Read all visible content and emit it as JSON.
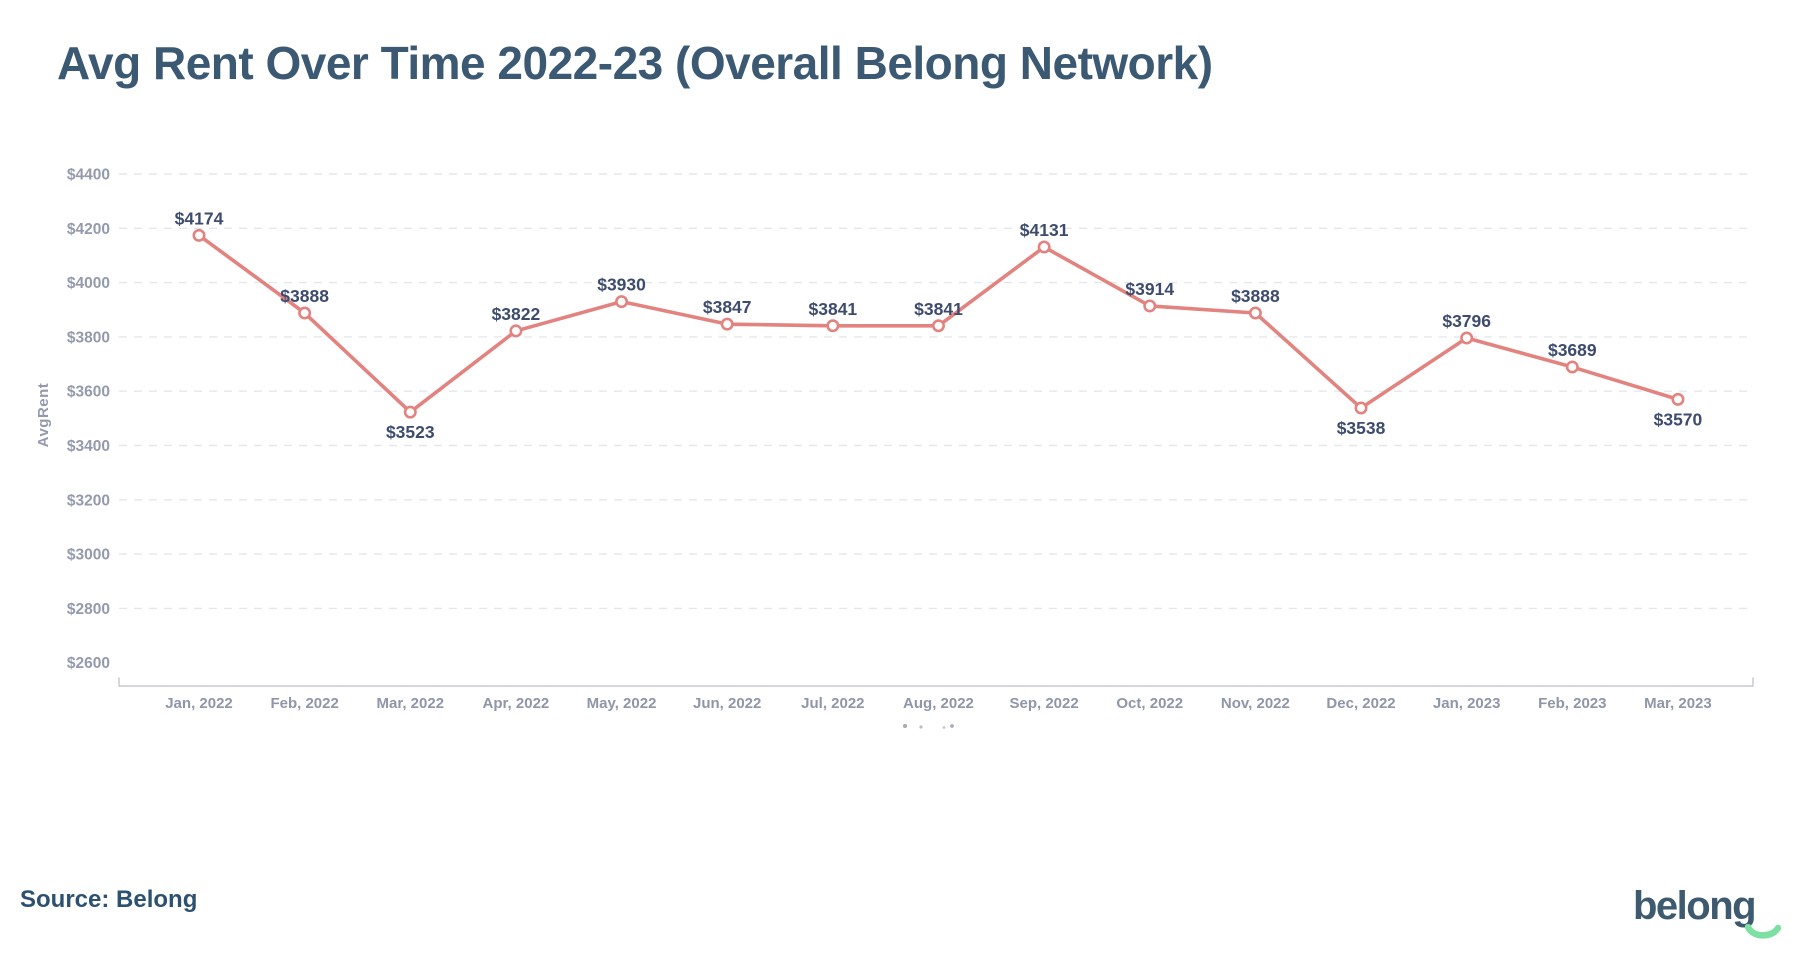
{
  "header": {
    "title": "Avg Rent Over Time 2022-23 (Overall Belong Network)"
  },
  "footer": {
    "source_label": "Source: Belong",
    "logo_text": "belong"
  },
  "chart_data": {
    "type": "line",
    "title": "Avg Rent Over Time 2022-23 (Overall Belong Network)",
    "xlabel": "",
    "ylabel": "AvgRent",
    "categories": [
      "Jan, 2022",
      "Feb, 2022",
      "Mar, 2022",
      "Apr, 2022",
      "May, 2022",
      "Jun, 2022",
      "Jul, 2022",
      "Aug, 2022",
      "Sep, 2022",
      "Oct, 2022",
      "Nov, 2022",
      "Dec, 2022",
      "Jan, 2023",
      "Feb, 2023",
      "Mar, 2023"
    ],
    "values": [
      4174,
      3888,
      3523,
      3822,
      3930,
      3847,
      3841,
      3841,
      4131,
      3914,
      3888,
      3538,
      3796,
      3689,
      3570
    ],
    "point_labels": [
      "$4174",
      "$3888",
      "$3523",
      "$3822",
      "$3930",
      "$3847",
      "$3841",
      "$3841",
      "$4131",
      "$3914",
      "$3888",
      "$3538",
      "$3796",
      "$3689",
      "$3570"
    ],
    "label_below": [
      false,
      false,
      true,
      false,
      false,
      false,
      false,
      false,
      false,
      false,
      false,
      true,
      false,
      false,
      true
    ],
    "y_ticks": [
      "$4400",
      "$4200",
      "$4000",
      "$3800",
      "$3600",
      "$3400",
      "$3200",
      "$3000",
      "$2800",
      "$2600"
    ],
    "y_tick_values": [
      4400,
      4200,
      4000,
      3800,
      3600,
      3400,
      3200,
      3000,
      2800,
      2600
    ],
    "ylim": [
      2600,
      4400
    ],
    "grid": "horizontal-dashed",
    "legend_position": "none",
    "colors": {
      "line": "#e2837f",
      "marker_fill": "#ffffff",
      "data_label": "#3d4c6e",
      "tick_label": "#939aad",
      "grid": "#e5e7ea",
      "axis": "#c7cad2",
      "title": "#3b5973",
      "logo_green": "#7de0a3"
    }
  }
}
